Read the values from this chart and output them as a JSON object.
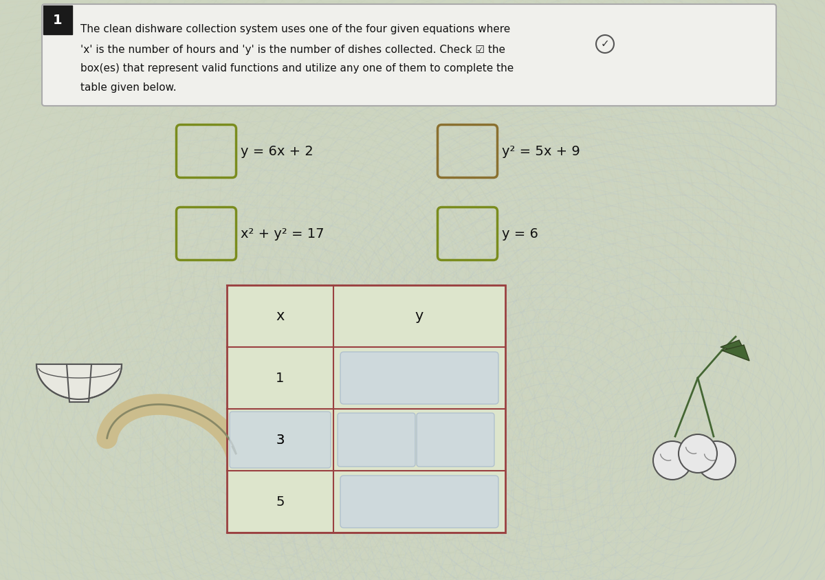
{
  "bg_color": "#cdd5c0",
  "title_box_bg": "#f0f0ec",
  "title_box_border": "#aaaaaa",
  "number_bg": "#1a1a1a",
  "text_lines": [
    "The clean dishware collection system uses one of the four given equations where",
    "'x' is the number of hours and 'y' is the number of dishes collected. Check ☑ the",
    "box(es) that represent valid functions and utilize any one of them to complete the",
    "table given below."
  ],
  "eq1_text": "y = 6x + 2",
  "eq2_text": "y² = 5x + 9",
  "eq3_text": "x² + y² = 17",
  "eq4_text": "y = 6",
  "eq_box_color1": "#7a8c1e",
  "eq_box_color2": "#8a7030",
  "eq_box_color3": "#7a8c1e",
  "eq_box_color4": "#7a8c1e",
  "table_border": "#9a4040",
  "table_header_bg": "#dde5cc",
  "table_cell_bg": "#dde5cc",
  "table_inner_bg": "#ccd8e0",
  "table_inner_border": "#aabbcc",
  "x_vals": [
    "x",
    "1",
    "3",
    "5"
  ],
  "y_label": "y"
}
